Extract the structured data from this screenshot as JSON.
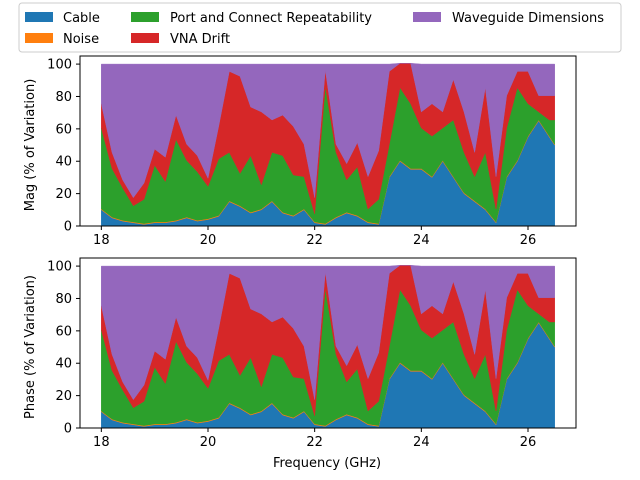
{
  "legend": {
    "placement": "top",
    "columns": 3,
    "entries": [
      {
        "label": "Cable",
        "color": "#1f77b4"
      },
      {
        "label": "Noise",
        "color": "#ff7f0e"
      },
      {
        "label": "Port and Connect Repeatability",
        "color": "#2ca02c"
      },
      {
        "label": "VNA Drift",
        "color": "#d62728"
      },
      {
        "label": "Waveguide Dimensions",
        "color": "#9467bd"
      }
    ]
  },
  "chart_data": [
    {
      "type": "area",
      "stacked": true,
      "xlabel": "",
      "ylabel": "Mag (% of Variation)",
      "xlim": [
        17.6,
        26.9
      ],
      "ylim": [
        0,
        105
      ],
      "xticks": [
        18,
        20,
        22,
        24,
        26
      ],
      "yticks": [
        0,
        20,
        40,
        60,
        80,
        100
      ],
      "grid": false,
      "x": [
        18.0,
        18.2,
        18.4,
        18.6,
        18.8,
        19.0,
        19.2,
        19.4,
        19.6,
        19.8,
        20.0,
        20.2,
        20.4,
        20.6,
        20.8,
        21.0,
        21.2,
        21.4,
        21.6,
        21.8,
        22.0,
        22.2,
        22.4,
        22.6,
        22.8,
        23.0,
        23.2,
        23.4,
        23.6,
        23.8,
        24.0,
        24.2,
        24.4,
        24.6,
        24.8,
        25.0,
        25.2,
        25.4,
        25.6,
        25.8,
        26.0,
        26.2,
        26.4,
        26.5
      ],
      "series": [
        {
          "name": "Cable",
          "color": "#1f77b4",
          "values": [
            10,
            5,
            3,
            2,
            1,
            2,
            2,
            3,
            5,
            3,
            4,
            6,
            15,
            12,
            8,
            10,
            15,
            8,
            6,
            10,
            2,
            1,
            5,
            8,
            6,
            2,
            1,
            30,
            40,
            35,
            35,
            30,
            40,
            30,
            20,
            15,
            10,
            2,
            30,
            40,
            55,
            65,
            55,
            50
          ]
        },
        {
          "name": "Noise",
          "color": "#ff7f0e",
          "values": [
            0.5,
            0.5,
            0.5,
            0.5,
            0.5,
            0.5,
            0.5,
            0.5,
            0.5,
            0.5,
            0.5,
            0.5,
            0.5,
            0.5,
            0.5,
            0.5,
            0.5,
            0.5,
            0.5,
            0.5,
            0.5,
            0.5,
            0.5,
            0.5,
            0.5,
            0.5,
            0.5,
            0.5,
            0.5,
            0.5,
            0.5,
            0.5,
            0.5,
            0.5,
            0.5,
            0.5,
            0.5,
            0.5,
            0.5,
            0.5,
            0.5,
            0.5,
            0.5,
            0.5
          ]
        },
        {
          "name": "Port and Connect Repeatability",
          "color": "#2ca02c",
          "values": [
            50,
            30,
            20,
            10,
            15,
            35,
            25,
            50,
            35,
            30,
            20,
            35,
            30,
            20,
            35,
            15,
            30,
            35,
            25,
            20,
            5,
            85,
            40,
            20,
            30,
            8,
            15,
            20,
            45,
            40,
            25,
            25,
            20,
            35,
            25,
            15,
            35,
            8,
            30,
            45,
            20,
            5,
            10,
            15
          ]
        },
        {
          "name": "VNA Drift",
          "color": "#d62728",
          "values": [
            15,
            10,
            5,
            5,
            10,
            10,
            15,
            15,
            10,
            10,
            5,
            20,
            50,
            60,
            30,
            45,
            20,
            25,
            30,
            20,
            10,
            10,
            5,
            10,
            15,
            20,
            30,
            45,
            15,
            25,
            10,
            20,
            10,
            25,
            25,
            15,
            40,
            20,
            20,
            10,
            20,
            10,
            15,
            15
          ]
        },
        {
          "name": "Waveguide Dimensions",
          "color": "#9467bd",
          "values": [
            24.5,
            54.5,
            71.5,
            82.5,
            73.5,
            52.5,
            57.5,
            31.5,
            49.5,
            56.5,
            70.5,
            38.5,
            4.5,
            7.5,
            26.5,
            29.5,
            34.5,
            31.5,
            38.5,
            49.5,
            82.5,
            3.5,
            49.5,
            61.5,
            48.5,
            69.5,
            53.5,
            4.5,
            0,
            0,
            29.5,
            24.5,
            29.5,
            9.5,
            29.5,
            54.5,
            14.5,
            69.5,
            19.5,
            4.5,
            4.5,
            19.5,
            19.5,
            19.5
          ]
        }
      ]
    },
    {
      "type": "area",
      "stacked": true,
      "xlabel": "Frequency (GHz)",
      "ylabel": "Phase (% of Variation)",
      "xlim": [
        17.6,
        26.9
      ],
      "ylim": [
        0,
        105
      ],
      "xticks": [
        18,
        20,
        22,
        24,
        26
      ],
      "yticks": [
        0,
        20,
        40,
        60,
        80,
        100
      ],
      "grid": false,
      "x": [
        18.0,
        18.2,
        18.4,
        18.6,
        18.8,
        19.0,
        19.2,
        19.4,
        19.6,
        19.8,
        20.0,
        20.2,
        20.4,
        20.6,
        20.8,
        21.0,
        21.2,
        21.4,
        21.6,
        21.8,
        22.0,
        22.2,
        22.4,
        22.6,
        22.8,
        23.0,
        23.2,
        23.4,
        23.6,
        23.8,
        24.0,
        24.2,
        24.4,
        24.6,
        24.8,
        25.0,
        25.2,
        25.4,
        25.6,
        25.8,
        26.0,
        26.2,
        26.4,
        26.5
      ],
      "series": [
        {
          "name": "Cable",
          "color": "#1f77b4",
          "values": [
            10,
            5,
            3,
            2,
            1,
            2,
            2,
            3,
            5,
            3,
            4,
            6,
            15,
            12,
            8,
            10,
            15,
            8,
            6,
            10,
            2,
            1,
            5,
            8,
            6,
            2,
            1,
            30,
            40,
            35,
            35,
            30,
            40,
            30,
            20,
            15,
            10,
            2,
            30,
            40,
            55,
            65,
            55,
            50
          ]
        },
        {
          "name": "Noise",
          "color": "#ff7f0e",
          "values": [
            0.5,
            0.5,
            0.5,
            0.5,
            0.5,
            0.5,
            0.5,
            0.5,
            0.5,
            0.5,
            0.5,
            0.5,
            0.5,
            0.5,
            0.5,
            0.5,
            0.5,
            0.5,
            0.5,
            0.5,
            0.5,
            0.5,
            0.5,
            0.5,
            0.5,
            0.5,
            0.5,
            0.5,
            0.5,
            0.5,
            0.5,
            0.5,
            0.5,
            0.5,
            0.5,
            0.5,
            0.5,
            0.5,
            0.5,
            0.5,
            0.5,
            0.5,
            0.5,
            0.5
          ]
        },
        {
          "name": "Port and Connect Repeatability",
          "color": "#2ca02c",
          "values": [
            50,
            30,
            20,
            10,
            15,
            35,
            25,
            50,
            35,
            30,
            20,
            35,
            30,
            20,
            35,
            15,
            30,
            35,
            25,
            20,
            5,
            85,
            40,
            20,
            30,
            8,
            15,
            20,
            45,
            40,
            25,
            25,
            20,
            35,
            25,
            15,
            35,
            8,
            30,
            45,
            20,
            5,
            10,
            15
          ]
        },
        {
          "name": "VNA Drift",
          "color": "#d62728",
          "values": [
            15,
            10,
            5,
            5,
            10,
            10,
            15,
            15,
            10,
            10,
            5,
            20,
            50,
            60,
            30,
            45,
            20,
            25,
            30,
            20,
            10,
            10,
            5,
            10,
            15,
            20,
            30,
            45,
            15,
            25,
            10,
            20,
            10,
            25,
            25,
            15,
            40,
            20,
            20,
            10,
            20,
            10,
            15,
            15
          ]
        },
        {
          "name": "Waveguide Dimensions",
          "color": "#9467bd",
          "values": [
            24.5,
            54.5,
            71.5,
            82.5,
            73.5,
            52.5,
            57.5,
            31.5,
            49.5,
            56.5,
            70.5,
            38.5,
            4.5,
            7.5,
            26.5,
            29.5,
            34.5,
            31.5,
            38.5,
            49.5,
            82.5,
            3.5,
            49.5,
            61.5,
            48.5,
            69.5,
            53.5,
            4.5,
            0,
            0,
            29.5,
            24.5,
            29.5,
            9.5,
            29.5,
            54.5,
            14.5,
            69.5,
            19.5,
            4.5,
            4.5,
            19.5,
            19.5,
            19.5
          ]
        }
      ]
    }
  ]
}
